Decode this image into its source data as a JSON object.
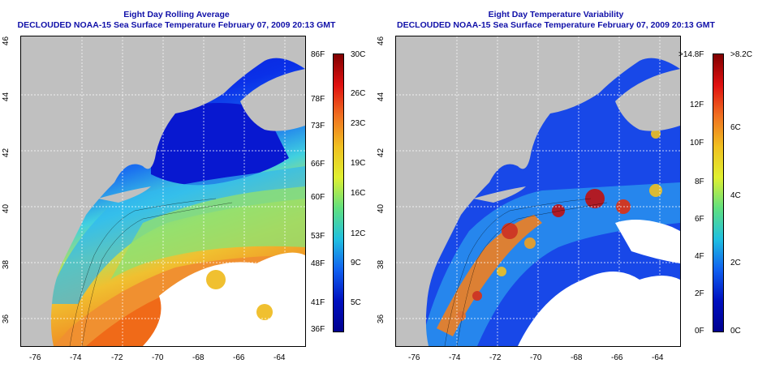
{
  "left_panel": {
    "title_line1": "Eight Day Rolling Average",
    "title_line2": "DECLOUDED NOAA-15 Sea Surface Temperature February 07, 2009 20:13 GMT",
    "lat_ticks": [
      "46",
      "44",
      "42",
      "40",
      "38",
      "36"
    ],
    "lon_ticks": [
      "-76",
      "-74",
      "-72",
      "-70",
      "-68",
      "-66",
      "-64"
    ],
    "colorbar_f": [
      "86F",
      "78F",
      "73F",
      "66F",
      "60F",
      "53F",
      "48F",
      "41F",
      "36F"
    ],
    "colorbar_c": [
      "30C",
      "26C",
      "23C",
      "19C",
      "16C",
      "12C",
      "9C",
      "5C"
    ]
  },
  "right_panel": {
    "title_line1": "Eight Day Temperature Variability",
    "title_line2": "DECLOUDED NOAA-15 Sea Surface Temperature February 07, 2009 20:13 GMT",
    "lat_ticks": [
      "46",
      "44",
      "42",
      "40",
      "38",
      "36"
    ],
    "lon_ticks": [
      "-76",
      "-74",
      "-72",
      "-70",
      "-68",
      "-66",
      "-64"
    ],
    "colorbar_f": [
      ">14.8F",
      "12F",
      "10F",
      "8F",
      "6F",
      "4F",
      "2F",
      "0F"
    ],
    "colorbar_c": [
      ">8.2C",
      "6C",
      "4C",
      "2C",
      "0C"
    ]
  },
  "colors": {
    "land": "#c0c0c0",
    "cloud": "#ffffff",
    "title": "#1010a8",
    "grid": "#ffffff"
  }
}
